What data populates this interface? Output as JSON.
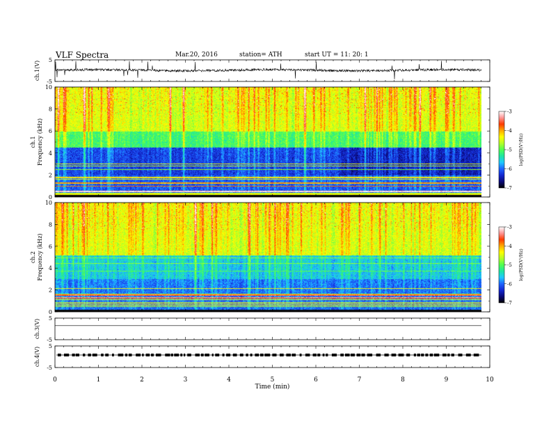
{
  "header": {
    "title": "VLF  Spectra",
    "date": "Mar.20, 2016",
    "station": "station= ATH",
    "start": "start  UT =    11: 20: 1"
  },
  "chart_data": [
    {
      "type": "line",
      "name": "ch1-waveform",
      "ylabel": "ch.1(V)",
      "ylim": [
        -5,
        5
      ],
      "yticks": [
        "5",
        "-5"
      ],
      "xlim": [
        0,
        10
      ]
    },
    {
      "type": "heatmap",
      "name": "ch1-spectrogram",
      "ylabel": "ch.1\nFrequency  (kHz)",
      "ylabel_channel": "ch.1",
      "ylabel_freq": "Frequency  (kHz)",
      "ylim": [
        0,
        10
      ],
      "yticks": [
        "0",
        "2",
        "4",
        "6",
        "8",
        "10"
      ],
      "xlim": [
        0,
        10
      ],
      "colorbar": {
        "label": "log(PSD(V²/Hz)",
        "ticks": [
          "-3",
          "-4",
          "-5",
          "-6",
          "-7"
        ],
        "range": [
          -7,
          -3
        ]
      }
    },
    {
      "type": "heatmap",
      "name": "ch2-spectrogram",
      "ylabel_channel": "ch.2",
      "ylabel_freq": "Frequency  (kHz)",
      "ylim": [
        0,
        10
      ],
      "yticks": [
        "0",
        "2",
        "4",
        "6",
        "8",
        "10"
      ],
      "xlim": [
        0,
        10
      ],
      "colorbar": {
        "label": "log(PSD(V²/Hz)",
        "ticks": [
          "-3",
          "-4",
          "-5",
          "-6",
          "-7"
        ],
        "range": [
          -7,
          -3
        ]
      }
    },
    {
      "type": "line",
      "name": "ch3-waveform",
      "ylabel": "ch.3(V)",
      "ylim": [
        -5,
        5
      ],
      "yticks": [
        "5",
        "-5"
      ],
      "xlim": [
        0,
        10
      ]
    },
    {
      "type": "line",
      "name": "ch4-waveform",
      "ylabel": "ch.4(V)",
      "ylim": [
        -5,
        5
      ],
      "yticks": [
        "5",
        "-5"
      ],
      "xlim": [
        0,
        10
      ],
      "xlabel": "Time  (min)",
      "xticks": [
        "0",
        "1",
        "2",
        "3",
        "4",
        "5",
        "6",
        "7",
        "8",
        "9",
        "10"
      ]
    }
  ],
  "colors": {
    "colormap": [
      "#000000",
      "#0a0a78",
      "#1428d2",
      "#1e64ff",
      "#1ec8ff",
      "#1ee6a0",
      "#50ff50",
      "#b4ff28",
      "#ffff00",
      "#ffaa00",
      "#ff3c00",
      "#ff9696",
      "#ffffff"
    ]
  }
}
